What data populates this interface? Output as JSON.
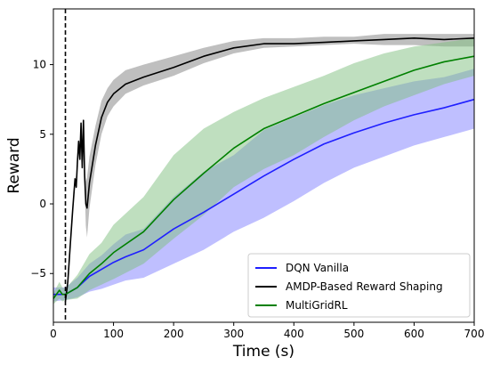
{
  "chart_data": {
    "type": "line",
    "title": "",
    "xlabel": "Time (s)",
    "ylabel": "Reward",
    "xlim": [
      0,
      700
    ],
    "ylim": [
      -8.5,
      14
    ],
    "x_ticks": [
      0,
      100,
      200,
      300,
      400,
      500,
      600,
      700
    ],
    "y_ticks": [
      -5,
      0,
      5,
      10
    ],
    "grid": false,
    "legend_position": "lower-right",
    "vline": {
      "x": 20,
      "style": "dashed",
      "color": "#000000"
    },
    "series": [
      {
        "name": "DQN Vanilla",
        "color": "#1f1fff",
        "band_color": "#8080ff",
        "x": [
          0,
          20,
          40,
          60,
          80,
          100,
          120,
          150,
          200,
          250,
          300,
          350,
          400,
          450,
          500,
          550,
          600,
          650,
          700
        ],
        "y": [
          -6.5,
          -6.5,
          -6.0,
          -5.2,
          -4.7,
          -4.2,
          -3.8,
          -3.3,
          -1.8,
          -0.6,
          0.7,
          2.0,
          3.2,
          4.3,
          5.1,
          5.8,
          6.4,
          6.9,
          7.5
        ],
        "lower": [
          -7.0,
          -6.9,
          -6.7,
          -6.3,
          -6.1,
          -5.8,
          -5.5,
          -5.3,
          -4.3,
          -3.3,
          -2.0,
          -1.0,
          0.2,
          1.5,
          2.6,
          3.4,
          4.2,
          4.8,
          5.4
        ],
        "upper": [
          -6.0,
          -6.0,
          -5.3,
          -4.3,
          -3.7,
          -2.9,
          -2.2,
          -1.8,
          0.5,
          2.3,
          3.5,
          5.3,
          6.2,
          7.1,
          7.8,
          8.3,
          8.8,
          9.1,
          9.7
        ]
      },
      {
        "name": "AMDP-Based Reward Shaping",
        "color": "#000000",
        "band_color": "#808080",
        "x": [
          20,
          24,
          28,
          32,
          36,
          38,
          40,
          42,
          44,
          46,
          48,
          50,
          52,
          54,
          56,
          60,
          70,
          80,
          90,
          100,
          120,
          150,
          200,
          250,
          300,
          350,
          400,
          450,
          500,
          550,
          600,
          650,
          700
        ],
        "y": [
          -7.0,
          -5.6,
          -3.0,
          -0.5,
          1.8,
          1.2,
          3.0,
          4.5,
          3.2,
          5.8,
          2.6,
          6.0,
          2.0,
          0.0,
          -0.3,
          1.5,
          4.2,
          6.2,
          7.3,
          7.9,
          8.6,
          9.1,
          9.8,
          10.6,
          11.2,
          11.5,
          11.5,
          11.6,
          11.7,
          11.8,
          11.9,
          11.8,
          11.9
        ],
        "lower": [
          -7.2,
          -5.8,
          -3.2,
          -0.7,
          1.6,
          1.0,
          2.8,
          4.3,
          3.0,
          5.6,
          2.4,
          5.8,
          1.2,
          -1.6,
          -2.4,
          -0.3,
          2.8,
          5.0,
          6.3,
          7.0,
          7.9,
          8.5,
          9.2,
          10.1,
          10.8,
          11.2,
          11.3,
          11.4,
          11.5,
          11.4,
          11.4,
          11.3,
          11.3
        ],
        "upper": [
          -6.8,
          -5.4,
          -2.8,
          -0.3,
          2.0,
          1.4,
          3.2,
          4.7,
          3.4,
          6.0,
          2.8,
          6.2,
          2.8,
          1.6,
          1.9,
          3.4,
          5.6,
          7.4,
          8.3,
          8.9,
          9.6,
          10.0,
          10.6,
          11.2,
          11.7,
          11.9,
          11.9,
          12.0,
          12.0,
          12.2,
          12.2,
          12.2,
          12.2
        ]
      },
      {
        "name": "MultiGridRL",
        "color": "#008000",
        "band_color": "#80c080",
        "x": [
          0,
          10,
          15,
          20,
          40,
          60,
          80,
          100,
          150,
          200,
          250,
          300,
          350,
          400,
          450,
          500,
          550,
          600,
          650,
          700
        ],
        "y": [
          -6.8,
          -6.2,
          -6.5,
          -6.5,
          -6.0,
          -5.0,
          -4.3,
          -3.5,
          -2.0,
          0.3,
          2.2,
          4.0,
          5.4,
          6.3,
          7.2,
          8.0,
          8.8,
          9.6,
          10.2,
          10.6
        ],
        "lower": [
          -7.2,
          -6.8,
          -7.0,
          -6.9,
          -6.8,
          -6.2,
          -5.8,
          -5.4,
          -4.3,
          -2.5,
          -0.8,
          1.2,
          2.5,
          3.5,
          4.8,
          6.0,
          7.0,
          7.8,
          8.6,
          9.2
        ],
        "upper": [
          -6.4,
          -5.6,
          -6.0,
          -6.1,
          -5.1,
          -3.6,
          -2.8,
          -1.5,
          0.5,
          3.5,
          5.4,
          6.6,
          7.6,
          8.4,
          9.2,
          10.1,
          10.8,
          11.3,
          11.6,
          11.9
        ]
      }
    ]
  }
}
